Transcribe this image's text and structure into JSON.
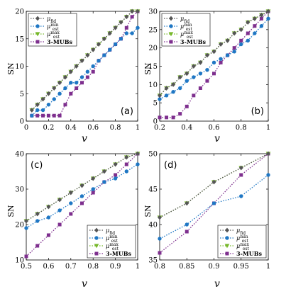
{
  "figure": {
    "y_label": "SN",
    "x_label": "v"
  },
  "legend_entries": [
    {
      "main": "μ",
      "sub": "fid",
      "sup": ""
    },
    {
      "main": "μ",
      "sub": "est",
      "sup": "min"
    },
    {
      "main": "μ",
      "sub": "est",
      "sup": "max"
    },
    {
      "main": "3-MUBs",
      "sub": "",
      "sup": ""
    }
  ],
  "colors": {
    "fid": "#555555",
    "min": "#1f77c4",
    "max": "#77b82a",
    "mubs": "#7e2f8e"
  },
  "chart_data": [
    {
      "type": "line",
      "panel_label": "(a)",
      "legend": "top-left",
      "xlim": [
        0,
        1
      ],
      "ylim": [
        0,
        20
      ],
      "xticks": [
        0,
        0.2,
        0.4,
        0.6,
        0.8,
        1
      ],
      "xtick_labels": [
        "0",
        "0.2",
        "0.4",
        "0.6",
        "0.8",
        "1"
      ],
      "yticks": [
        0,
        5,
        10,
        15,
        20
      ],
      "ytick_labels": [
        "0",
        "5",
        "10",
        "15",
        "20"
      ],
      "x_label": "v",
      "y_label": "SN",
      "x": [
        0.05,
        0.1,
        0.15,
        0.2,
        0.25,
        0.3,
        0.35,
        0.4,
        0.45,
        0.5,
        0.55,
        0.6,
        0.65,
        0.7,
        0.75,
        0.8,
        0.85,
        0.9,
        0.95,
        1.0
      ],
      "series": [
        {
          "key": "fid",
          "marker": "diamond",
          "values": [
            2,
            3,
            4,
            5,
            6,
            7,
            8,
            9,
            10,
            11,
            12,
            13,
            14,
            15,
            16,
            17,
            18,
            19,
            20,
            20
          ]
        },
        {
          "key": "min",
          "marker": "circle",
          "values": [
            1,
            2,
            2,
            3,
            4,
            5,
            6,
            7,
            7,
            8,
            9,
            10,
            11,
            12,
            13,
            14,
            15,
            16,
            16,
            17
          ]
        },
        {
          "key": "max",
          "marker": "triangle",
          "values": [
            2,
            3,
            4,
            5,
            6,
            7,
            8,
            9,
            10,
            11,
            12,
            13,
            14,
            15,
            16,
            17,
            18,
            19,
            20,
            20
          ]
        },
        {
          "key": "mubs",
          "marker": "square",
          "values": [
            1,
            1,
            1,
            1,
            1,
            1,
            3,
            5,
            6,
            7,
            8,
            9,
            11,
            12,
            13,
            14,
            15,
            17,
            19,
            20
          ]
        }
      ]
    },
    {
      "type": "line",
      "panel_label": "(b)",
      "legend": "top-left",
      "xlim": [
        0.2,
        1
      ],
      "ylim": [
        0,
        30
      ],
      "xticks": [
        0.2,
        0.4,
        0.6,
        0.8,
        1
      ],
      "xtick_labels": [
        "0.2",
        "0.4",
        "0.6",
        "0.8",
        "1"
      ],
      "yticks": [
        0,
        5,
        10,
        15,
        20,
        25,
        30
      ],
      "ytick_labels": [
        "0",
        "5",
        "10",
        "15",
        "20",
        "25",
        "30"
      ],
      "x_label": "v",
      "y_label": "SN",
      "x": [
        0.2,
        0.25,
        0.3,
        0.35,
        0.4,
        0.45,
        0.5,
        0.55,
        0.6,
        0.65,
        0.7,
        0.75,
        0.8,
        0.85,
        0.9,
        0.95,
        1.0
      ],
      "series": [
        {
          "key": "fid",
          "marker": "diamond",
          "values": [
            7,
            9,
            10,
            12,
            13,
            15,
            16,
            18,
            19,
            21,
            22,
            24,
            25,
            27,
            28,
            29,
            30
          ]
        },
        {
          "key": "min",
          "marker": "circle",
          "values": [
            6,
            7,
            8,
            9,
            11,
            12,
            13,
            14,
            16,
            17,
            18,
            19,
            21,
            22,
            24,
            26,
            28
          ]
        },
        {
          "key": "max",
          "marker": "triangle",
          "values": [
            7,
            9,
            10,
            12,
            13,
            15,
            16,
            18,
            19,
            21,
            22,
            24,
            25,
            27,
            28,
            29,
            30
          ]
        },
        {
          "key": "mubs",
          "marker": "square",
          "values": [
            1,
            1,
            1,
            2,
            4,
            7,
            9,
            11,
            13,
            16,
            18,
            20,
            22,
            24,
            26,
            28,
            30
          ]
        }
      ]
    },
    {
      "type": "line",
      "panel_label": "(c)",
      "legend": "bottom-right",
      "xlim": [
        0.5,
        1
      ],
      "ylim": [
        10,
        40
      ],
      "xticks": [
        0.5,
        0.6,
        0.7,
        0.8,
        0.9,
        1
      ],
      "xtick_labels": [
        "0.5",
        "0.6",
        "0.7",
        "0.8",
        "0.9",
        "1"
      ],
      "yticks": [
        10,
        20,
        30,
        40
      ],
      "ytick_labels": [
        "10",
        "20",
        "30",
        "40"
      ],
      "x_label": "v",
      "y_label": "SN",
      "x": [
        0.5,
        0.55,
        0.6,
        0.65,
        0.7,
        0.75,
        0.8,
        0.85,
        0.9,
        0.95,
        1.0
      ],
      "series": [
        {
          "key": "fid",
          "marker": "diamond",
          "values": [
            21,
            23,
            25,
            27,
            29,
            31,
            33,
            35,
            37,
            39,
            40
          ]
        },
        {
          "key": "min",
          "marker": "circle",
          "values": [
            19,
            21,
            22,
            24,
            26,
            28,
            30,
            32,
            33,
            35,
            37
          ]
        },
        {
          "key": "max",
          "marker": "triangle",
          "values": [
            21,
            23,
            25,
            27,
            29,
            31,
            33,
            35,
            37,
            39,
            40
          ]
        },
        {
          "key": "mubs",
          "marker": "square",
          "values": [
            11,
            14,
            17,
            20,
            23,
            26,
            29,
            32,
            34,
            37,
            40
          ]
        }
      ]
    },
    {
      "type": "line",
      "panel_label": "(d)",
      "legend": "bottom-right",
      "xlim": [
        0.8,
        1
      ],
      "ylim": [
        35,
        50
      ],
      "xticks": [
        0.8,
        0.85,
        0.9,
        0.95,
        1
      ],
      "xtick_labels": [
        "0.8",
        "0.85",
        "0.9",
        "0.95",
        "1"
      ],
      "yticks": [
        35,
        40,
        45,
        50
      ],
      "ytick_labels": [
        "35",
        "40",
        "45",
        "50"
      ],
      "x_label": "v",
      "y_label": "SN",
      "x": [
        0.8,
        0.85,
        0.9,
        0.95,
        1.0
      ],
      "series": [
        {
          "key": "fid",
          "marker": "diamond",
          "values": [
            41,
            43,
            46,
            48,
            50
          ]
        },
        {
          "key": "min",
          "marker": "circle",
          "values": [
            38,
            40,
            43,
            44,
            47
          ]
        },
        {
          "key": "max",
          "marker": "triangle",
          "values": [
            41,
            43,
            46,
            48,
            50
          ]
        },
        {
          "key": "mubs",
          "marker": "square",
          "values": [
            36,
            39,
            43,
            47,
            50
          ]
        }
      ]
    }
  ]
}
